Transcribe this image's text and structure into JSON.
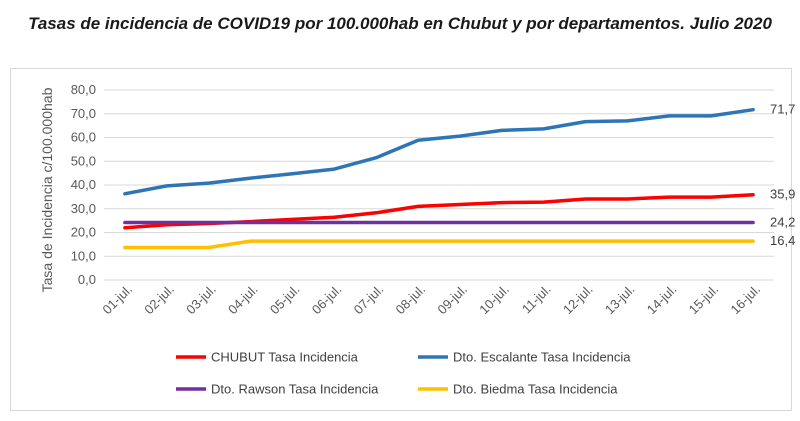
{
  "chart_data": {
    "type": "line",
    "title": "Tasas de incidencia de COVID19 por 100.000hab en Chubut y por departamentos. Julio 2020",
    "xlabel": "",
    "ylabel": "Tasa de Incidencia c/100.000hab",
    "ylim": [
      0,
      80
    ],
    "yticks": [
      "0,0",
      "10,0",
      "20,0",
      "30,0",
      "40,0",
      "50,0",
      "60,0",
      "70,0",
      "80,0"
    ],
    "grid": true,
    "legend": "bottom",
    "categories": [
      "01-jul.",
      "02-jul.",
      "03-jul.",
      "04-jul.",
      "05-jul.",
      "06-jul.",
      "07-jul.",
      "08-jul.",
      "09-jul.",
      "10-jul.",
      "11-jul.",
      "12-jul.",
      "13-jul.",
      "14-jul.",
      "15-jul.",
      "16-jul."
    ],
    "series": [
      {
        "name": "CHUBUT Tasa Incidencia",
        "color": "#ff0000",
        "end_label": "35,9",
        "values": [
          22.0,
          23.3,
          23.8,
          24.6,
          25.5,
          26.4,
          28.3,
          31.0,
          31.8,
          32.6,
          32.8,
          34.1,
          34.1,
          34.9,
          34.9,
          35.9
        ]
      },
      {
        "name": "Dto. Escalante Tasa Incidencia",
        "color": "#2e75b6",
        "end_label": "71,7",
        "values": [
          36.3,
          39.6,
          40.8,
          42.9,
          44.7,
          46.7,
          51.5,
          58.8,
          60.6,
          63.0,
          63.6,
          66.7,
          67.0,
          69.1,
          69.1,
          71.7
        ]
      },
      {
        "name": "Dto. Rawson Tasa Incidencia",
        "color": "#7030a0",
        "end_label": "24,2",
        "values": [
          24.2,
          24.2,
          24.2,
          24.2,
          24.2,
          24.2,
          24.2,
          24.2,
          24.2,
          24.2,
          24.2,
          24.2,
          24.2,
          24.2,
          24.2,
          24.2
        ]
      },
      {
        "name": "Dto. Biedma Tasa Incidencia",
        "color": "#ffc000",
        "end_label": "16,4",
        "values": [
          13.7,
          13.7,
          13.7,
          16.4,
          16.4,
          16.4,
          16.4,
          16.4,
          16.4,
          16.4,
          16.4,
          16.4,
          16.4,
          16.4,
          16.4,
          16.4
        ]
      }
    ]
  }
}
